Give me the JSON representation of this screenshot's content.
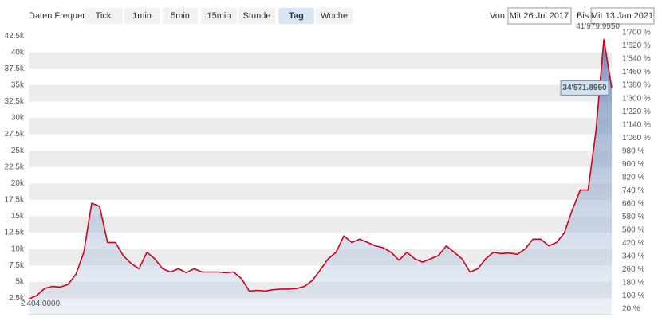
{
  "toolbar": {
    "label": "Daten Frequenz",
    "buttons": [
      "Tick",
      "1min",
      "5min",
      "15min",
      "Stunde",
      "Tag",
      "Woche"
    ],
    "active_index": 5
  },
  "range": {
    "from_label": "Von",
    "from": "Mit 26 Jul 2017",
    "to_label": "Bis",
    "to": "Mit 13 Jan 2021"
  },
  "chart_data": {
    "type": "area",
    "color": "#d0021b",
    "values": [
      2404,
      2900,
      4000,
      4300,
      4200,
      4600,
      6200,
      9500,
      17000,
      16500,
      11000,
      11000,
      9000,
      7800,
      7000,
      9500,
      8500,
      7000,
      6500,
      7000,
      6400,
      7000,
      6500,
      6500,
      6500,
      6400,
      6500,
      5500,
      3600,
      3700,
      3600,
      3800,
      3900,
      3900,
      4000,
      4300,
      5200,
      6800,
      8500,
      9500,
      12000,
      11000,
      11500,
      11000,
      10500,
      10200,
      9500,
      8300,
      9500,
      8500,
      8000,
      8500,
      9000,
      10500,
      9500,
      8500,
      6500,
      7000,
      8500,
      9500,
      9300,
      9400,
      9200,
      10000,
      11500,
      11500,
      10500,
      11000,
      12500,
      16000,
      19000,
      19000,
      28000,
      41979.995,
      34571.895
    ],
    "start_label": {
      "value": 2404,
      "label": "2'404.0000"
    },
    "max_label": {
      "value": 41979.995,
      "label": "41'979.9950"
    },
    "last_label": {
      "value": 34571.895,
      "label": "34'571.8950"
    },
    "ylim": [
      0,
      43000
    ],
    "yticks": [
      {
        "value": 2500,
        "label": "2.5k"
      },
      {
        "value": 5000,
        "label": "5k"
      },
      {
        "value": 7500,
        "label": "7.5k"
      },
      {
        "value": 10000,
        "label": "10k"
      },
      {
        "value": 12500,
        "label": "12.5k"
      },
      {
        "value": 15000,
        "label": "15k"
      },
      {
        "value": 17500,
        "label": "17.5k"
      },
      {
        "value": 20000,
        "label": "20k"
      },
      {
        "value": 22500,
        "label": "22.5k"
      },
      {
        "value": 25000,
        "label": "25k"
      },
      {
        "value": 27500,
        "label": "27.5k"
      },
      {
        "value": 30000,
        "label": "30k"
      },
      {
        "value": 32500,
        "label": "32.5k"
      },
      {
        "value": 35000,
        "label": "35k"
      },
      {
        "value": 37500,
        "label": "37.5k"
      },
      {
        "value": 40000,
        "label": "40k"
      },
      {
        "value": 42500,
        "label": "42.5k"
      }
    ],
    "y2lim": [
      -14,
      1700
    ],
    "y2ticks": [
      {
        "value": 20,
        "label": "20 %"
      },
      {
        "value": 100,
        "label": "100 %"
      },
      {
        "value": 180,
        "label": "180 %"
      },
      {
        "value": 260,
        "label": "260 %"
      },
      {
        "value": 340,
        "label": "340 %"
      },
      {
        "value": 420,
        "label": "420 %"
      },
      {
        "value": 500,
        "label": "500 %"
      },
      {
        "value": 580,
        "label": "580 %"
      },
      {
        "value": 660,
        "label": "660 %"
      },
      {
        "value": 740,
        "label": "740 %"
      },
      {
        "value": 820,
        "label": "820 %"
      },
      {
        "value": 900,
        "label": "900 %"
      },
      {
        "value": 980,
        "label": "980 %"
      },
      {
        "value": 1060,
        "label": "1'060 %"
      },
      {
        "value": 1140,
        "label": "1'140 %"
      },
      {
        "value": 1220,
        "label": "1'220 %"
      },
      {
        "value": 1300,
        "label": "1'300 %"
      },
      {
        "value": 1380,
        "label": "1'380 %"
      },
      {
        "value": 1460,
        "label": "1'460 %"
      },
      {
        "value": 1540,
        "label": "1'540 %"
      },
      {
        "value": 1620,
        "label": "1'620 %"
      },
      {
        "value": 1700,
        "label": "1'700 %"
      }
    ],
    "grid": true
  }
}
